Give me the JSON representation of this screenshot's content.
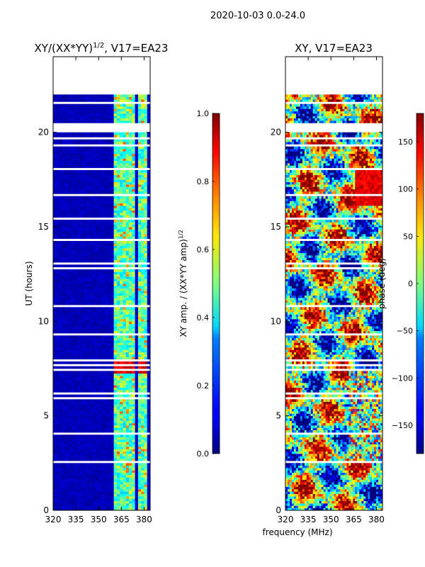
{
  "figure_title": "2020-10-03 0.0-24.0",
  "shared_xlabel": "frequency (MHz)",
  "chart_data": [
    {
      "type": "heatmap",
      "title": "XY/(XX*YY)^1/2, V17=EA23",
      "title_main": "XY/(XX*YY)",
      "title_exp": "1/2",
      "title_tail": ", V17=EA23",
      "xlabel": "frequency (MHz)",
      "ylabel": "UT (hours)",
      "xlim": [
        320,
        384
      ],
      "ylim": [
        0,
        24
      ],
      "xticks": [
        320,
        335,
        350,
        365,
        380
      ],
      "yticks": [
        0,
        5,
        10,
        15,
        20
      ],
      "data_time_range": [
        0,
        22
      ],
      "colorbar": {
        "label": "XY amp. / (XX*YY amp)^1/2",
        "label_main": "XY amp. / (XX*YY amp)",
        "label_exp": "1/2",
        "range": [
          0.0,
          1.0
        ],
        "ticks": [
          "0.0",
          "0.2",
          "0.4",
          "0.6",
          "0.8",
          "1.0"
        ],
        "colormap": "jet"
      }
    },
    {
      "type": "heatmap",
      "title": "XY, V17=EA23",
      "xlabel": "frequency (MHz)",
      "ylabel": "",
      "xlim": [
        320,
        384
      ],
      "ylim": [
        0,
        24
      ],
      "xticks": [
        320,
        335,
        350,
        365,
        380
      ],
      "yticks": [
        0,
        5,
        10,
        15,
        20
      ],
      "data_time_range": [
        0,
        22
      ],
      "colorbar": {
        "label": "phase (deg)",
        "range": [
          -180,
          180
        ],
        "ticks": [
          "−150",
          "−100",
          "−50",
          "0",
          "50",
          "100",
          "150"
        ],
        "tick_values": [
          -150,
          -100,
          -50,
          0,
          50,
          100,
          150
        ],
        "colormap": "jet"
      }
    }
  ],
  "colors": {
    "jet_low": "#00007f",
    "jet_blue": "#0000ff",
    "jet_cyan": "#00ffff",
    "jet_yellow": "#ffff00",
    "jet_red": "#ff0000",
    "jet_high": "#7f0000",
    "background": "#ffffff",
    "axes": "#000000"
  }
}
